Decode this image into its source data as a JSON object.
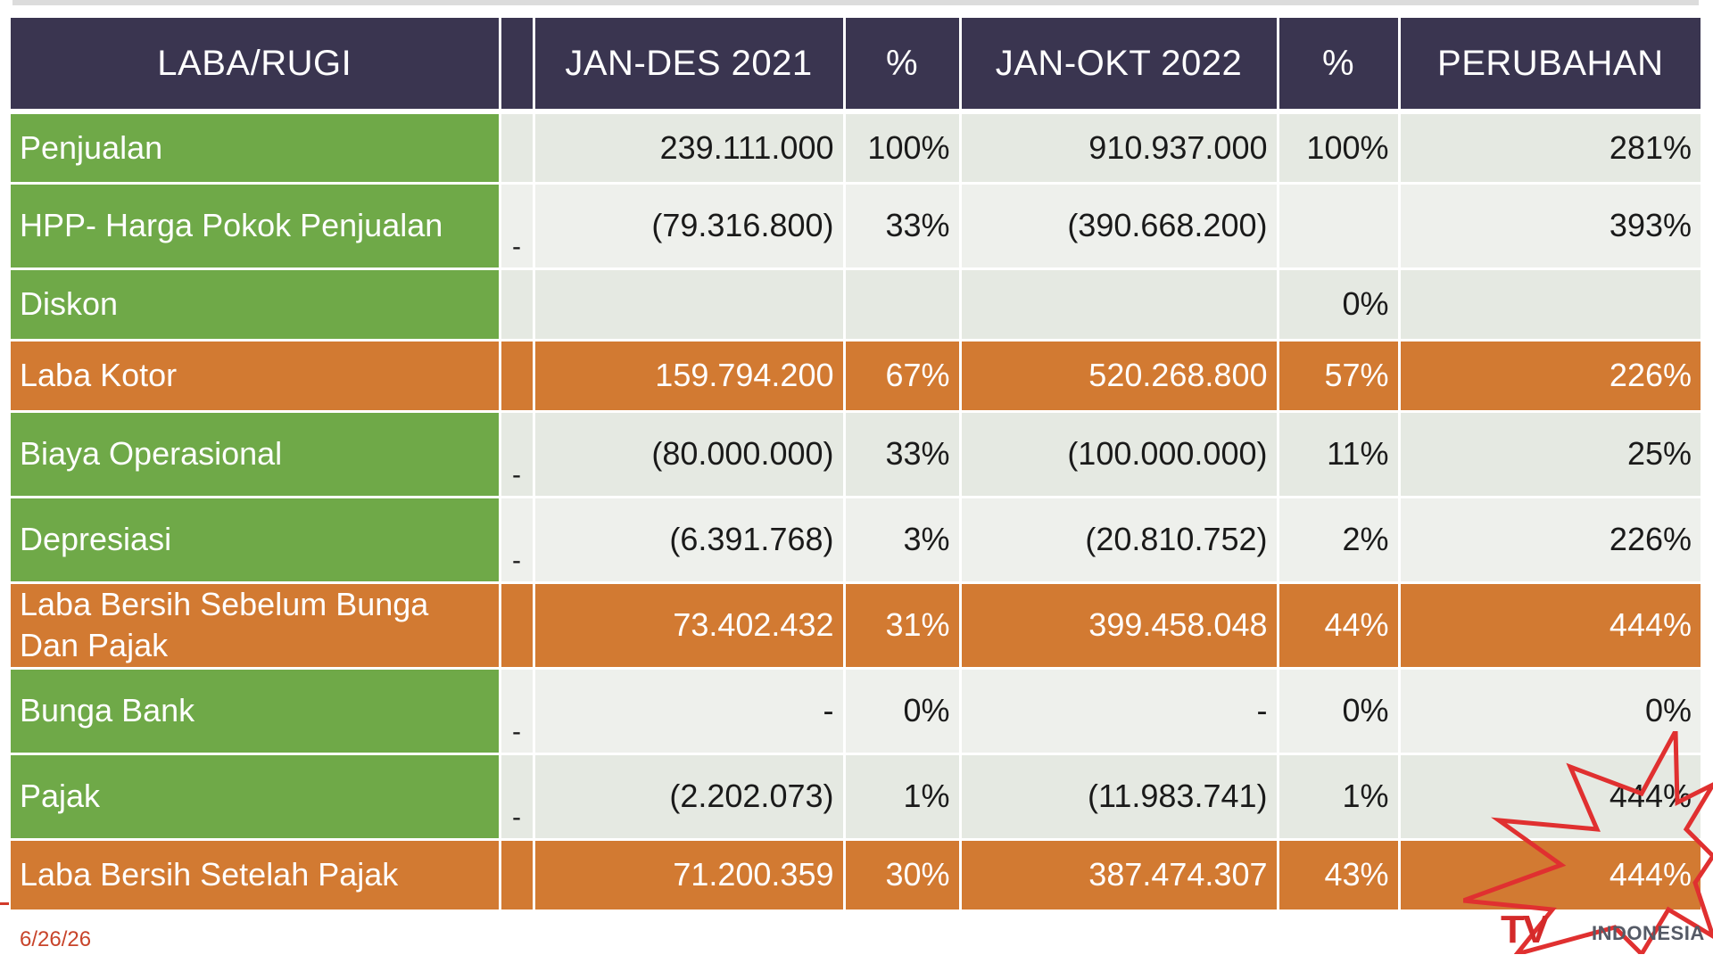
{
  "table": {
    "headers": [
      "LABA/RUGI",
      "",
      "JAN-DES 2021",
      "%",
      "JAN-OKT 2022",
      "%",
      "PERUBAHAN"
    ],
    "rows": [
      {
        "label": "Penjualan",
        "dash": "",
        "v2021": "239.111.000",
        "p2021": "100%",
        "v2022": "910.937.000",
        "p2022": "100%",
        "change": "281%"
      },
      {
        "label": "HPP- Harga Pokok Penjualan",
        "dash": "-",
        "v2021": "(79.316.800)",
        "p2021": "33%",
        "v2022": "(390.668.200)",
        "p2022": "",
        "change": "393%"
      },
      {
        "label": "Diskon",
        "dash": "",
        "v2021": "",
        "p2021": "",
        "v2022": "",
        "p2022": "0%",
        "change": ""
      },
      {
        "label": "Laba Kotor",
        "dash": "",
        "v2021": "159.794.200",
        "p2021": "67%",
        "v2022": "520.268.800",
        "p2022": "57%",
        "change": "226%"
      },
      {
        "label": "Biaya Operasional",
        "dash": "-",
        "v2021": "(80.000.000)",
        "p2021": "33%",
        "v2022": "(100.000.000)",
        "p2022": "11%",
        "change": "25%"
      },
      {
        "label": "Depresiasi",
        "dash": "-",
        "v2021": "(6.391.768)",
        "p2021": "3%",
        "v2022": "(20.810.752)",
        "p2022": "2%",
        "change": "226%"
      },
      {
        "label": "Laba Bersih Sebelum Bunga Dan Pajak",
        "dash": "",
        "v2021": "73.402.432",
        "p2021": "31%",
        "v2022": "399.458.048",
        "p2022": "44%",
        "change": "444%"
      },
      {
        "label": "Bunga Bank",
        "dash": "-",
        "v2021": "-",
        "p2021": "0%",
        "v2022": "-",
        "p2022": "0%",
        "change": "0%"
      },
      {
        "label": "Pajak",
        "dash": "-",
        "v2021": "(2.202.073)",
        "p2021": "1%",
        "v2022": "(11.983.741)",
        "p2022": "1%",
        "change": "444%"
      },
      {
        "label": "Laba Bersih Setelah Pajak",
        "dash": "",
        "v2021": "71.200.359",
        "p2021": "30%",
        "v2022": "387.474.307",
        "p2022": "43%",
        "change": "444%"
      }
    ]
  },
  "footer": {
    "date": "6/26/26",
    "logo_text": "TV",
    "logo_sub": "INDONESIA",
    "accent_red": "#d42a2a"
  },
  "colors": {
    "header_bg": "#3a3550",
    "label_green": "#6fa948",
    "highlight_orange": "#d27a32",
    "cell_light": "#e5e9e2"
  }
}
